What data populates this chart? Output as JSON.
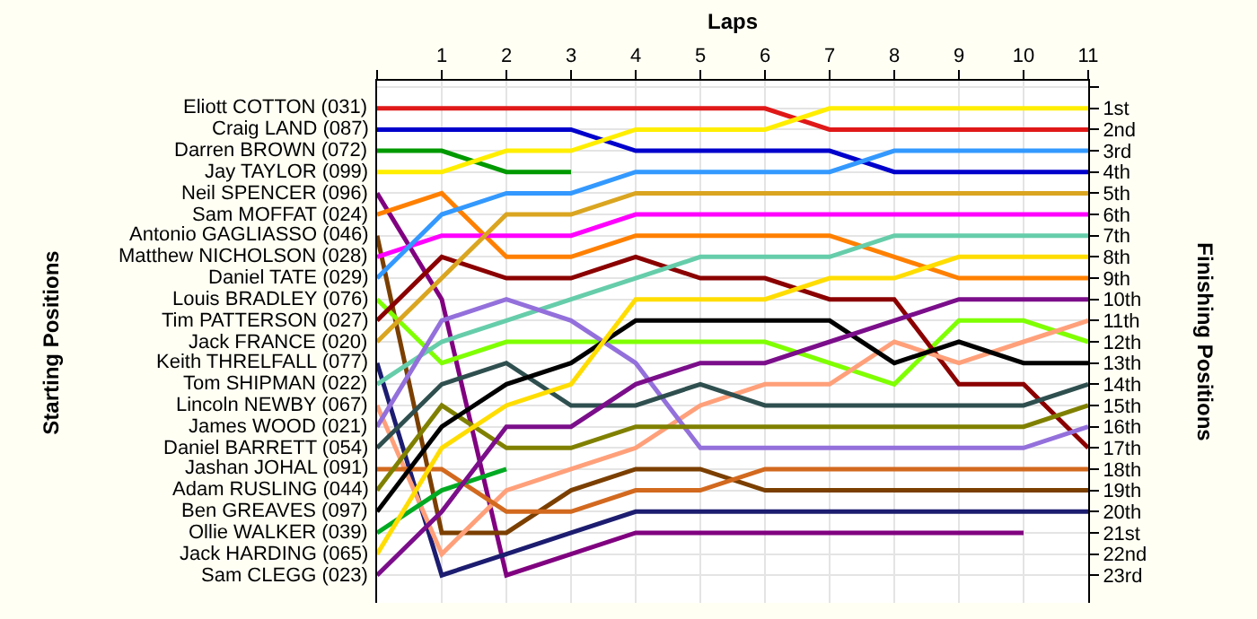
{
  "chart_data": {
    "type": "line",
    "xlabel": "Laps",
    "ylabel": "Finishing Positions",
    "annotations": [
      "Starting Positions"
    ],
    "x": [
      0,
      1,
      2,
      3,
      4,
      5,
      6,
      7,
      8,
      9,
      10,
      11
    ],
    "xlim": [
      0,
      11
    ],
    "xticks": [
      {
        "value": 0,
        "label": null
      },
      1,
      2,
      3,
      4,
      5,
      6,
      7,
      8,
      9,
      10,
      11
    ],
    "ylim": [
      24.3,
      -0.3
    ],
    "yticks": [
      {
        "value": 0,
        "label": null
      },
      {
        "value": 1,
        "label": "1st"
      },
      {
        "value": 2,
        "label": "2nd"
      },
      {
        "value": 3,
        "label": "3rd"
      },
      {
        "value": 4,
        "label": "4th"
      },
      {
        "value": 5,
        "label": "5th"
      },
      {
        "value": 6,
        "label": "6th"
      },
      {
        "value": 7,
        "label": "7th"
      },
      {
        "value": 8,
        "label": "8th"
      },
      {
        "value": 9,
        "label": "9th"
      },
      {
        "value": 10,
        "label": "10th"
      },
      {
        "value": 11,
        "label": "11th"
      },
      {
        "value": 12,
        "label": "12th"
      },
      {
        "value": 13,
        "label": "13th"
      },
      {
        "value": 14,
        "label": "14th"
      },
      {
        "value": 15,
        "label": "15th"
      },
      {
        "value": 16,
        "label": "16th"
      },
      {
        "value": 17,
        "label": "17th"
      },
      {
        "value": 18,
        "label": "18th"
      },
      {
        "value": 19,
        "label": "19th"
      },
      {
        "value": 20,
        "label": "20th"
      },
      {
        "value": 21,
        "label": "21st"
      },
      {
        "value": 22,
        "label": "22nd"
      },
      {
        "value": 23,
        "label": "23rd"
      }
    ],
    "grid": true,
    "legend": false,
    "marker": "none",
    "line_style": "solid",
    "series": [
      {
        "name": "Eliott COTTON (031)",
        "color": "#e01818",
        "values": [
          1,
          1,
          1,
          1,
          1,
          1,
          1,
          2,
          2,
          2,
          2,
          2
        ]
      },
      {
        "name": "Craig LAND (087)",
        "color": "#0000cc",
        "values": [
          2,
          2,
          2,
          2,
          3,
          3,
          3,
          3,
          4,
          4,
          4,
          4
        ]
      },
      {
        "name": "Darren BROWN (072)",
        "color": "#009900",
        "values": [
          3,
          3,
          4,
          4,
          null,
          null,
          null,
          null,
          null,
          null,
          null,
          null
        ]
      },
      {
        "name": "Jay TAYLOR (099)",
        "color": "#ffee00",
        "values": [
          4,
          4,
          3,
          3,
          2,
          2,
          2,
          1,
          1,
          1,
          1,
          1
        ]
      },
      {
        "name": "Neil SPENCER (096)",
        "color": "#800080",
        "values": [
          5,
          10,
          23,
          22,
          21,
          21,
          21,
          21,
          21,
          21,
          21,
          null
        ]
      },
      {
        "name": "Sam MOFFAT (024)",
        "color": "#ff8000",
        "values": [
          6,
          5,
          8,
          8,
          7,
          7,
          7,
          7,
          8,
          9,
          9,
          9
        ]
      },
      {
        "name": "Antonio GAGLIASSO (046)",
        "color": "#7b3f00",
        "values": [
          7,
          21,
          21,
          19,
          18,
          18,
          19,
          19,
          19,
          19,
          19,
          19
        ]
      },
      {
        "name": "Matthew NICHOLSON (028)",
        "color": "#ff00ff",
        "values": [
          8,
          7,
          7,
          7,
          6,
          6,
          6,
          6,
          6,
          6,
          6,
          6
        ]
      },
      {
        "name": "Daniel TATE (029)",
        "color": "#3399ff",
        "values": [
          9,
          6,
          5,
          5,
          4,
          4,
          4,
          4,
          3,
          3,
          3,
          3
        ]
      },
      {
        "name": "Louis BRADLEY (076)",
        "color": "#7fff00",
        "values": [
          10,
          13,
          12,
          12,
          12,
          12,
          12,
          13,
          14,
          11,
          11,
          12
        ]
      },
      {
        "name": "Tim PATTERSON (027)",
        "color": "#8b0000",
        "values": [
          11,
          8,
          9,
          9,
          8,
          9,
          9,
          10,
          10,
          14,
          14,
          17
        ]
      },
      {
        "name": "Jack FRANCE (020)",
        "color": "#daa520",
        "values": [
          12,
          9,
          6,
          6,
          5,
          5,
          5,
          5,
          5,
          5,
          5,
          5
        ]
      },
      {
        "name": "Keith THRELFALL (077)",
        "color": "#1c1c70",
        "values": [
          13,
          23,
          22,
          21,
          20,
          20,
          20,
          20,
          20,
          20,
          20,
          20
        ]
      },
      {
        "name": "Tom SHIPMAN (022)",
        "color": "#66cdaa",
        "values": [
          14,
          12,
          11,
          10,
          9,
          8,
          8,
          8,
          7,
          7,
          7,
          7
        ]
      },
      {
        "name": "Lincoln NEWBY (067)",
        "color": "#ffa07a",
        "values": [
          15,
          22,
          19,
          18,
          17,
          15,
          14,
          14,
          12,
          13,
          12,
          11
        ]
      },
      {
        "name": "James WOOD (021)",
        "color": "#9370db",
        "values": [
          16,
          11,
          10,
          11,
          13,
          17,
          17,
          17,
          17,
          17,
          17,
          16
        ]
      },
      {
        "name": "Daniel BARRETT (054)",
        "color": "#2f4f4f",
        "values": [
          17,
          14,
          13,
          15,
          15,
          14,
          15,
          15,
          15,
          15,
          15,
          14
        ]
      },
      {
        "name": "Jashan JOHAL (091)",
        "color": "#d2691e",
        "values": [
          18,
          18,
          20,
          20,
          19,
          19,
          18,
          18,
          18,
          18,
          18,
          18
        ]
      },
      {
        "name": "Adam RUSLING (044)",
        "color": "#808000",
        "values": [
          19,
          15,
          17,
          17,
          16,
          16,
          16,
          16,
          16,
          16,
          16,
          15
        ]
      },
      {
        "name": "Ben GREAVES (097)",
        "color": "#000000",
        "values": [
          20,
          16,
          14,
          13,
          11,
          11,
          11,
          11,
          13,
          12,
          13,
          13
        ]
      },
      {
        "name": "Ollie WALKER (039)",
        "color": "#00aa22",
        "values": [
          21,
          19,
          18,
          null,
          null,
          null,
          null,
          null,
          null,
          null,
          null,
          null
        ]
      },
      {
        "name": "Jack HARDING (065)",
        "color": "#ffdd00",
        "values": [
          22,
          17,
          15,
          14,
          10,
          10,
          10,
          9,
          9,
          8,
          8,
          8
        ]
      },
      {
        "name": "Sam CLEGG (023)",
        "color": "#7b0e8a",
        "values": [
          23,
          20,
          16,
          16,
          14,
          13,
          13,
          12,
          11,
          10,
          10,
          10
        ]
      }
    ]
  }
}
